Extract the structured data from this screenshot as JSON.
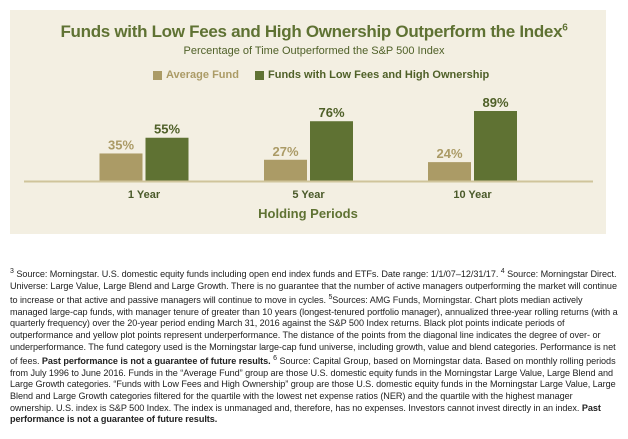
{
  "chart_data": {
    "type": "bar",
    "title": "Funds with Low Fees and High Ownership Outperform the Index",
    "title_superscript": "6",
    "subtitle": "Percentage of Time Outperformed the S&P 500 Index",
    "xlabel": "Holding Periods",
    "ylabel": "",
    "categories": [
      "1 Year",
      "5 Year",
      "10 Year"
    ],
    "series": [
      {
        "name": "Average Fund",
        "values": [
          35,
          27,
          24
        ],
        "color": "#ab9b66"
      },
      {
        "name": "Funds with Low Fees and High Ownership",
        "values": [
          55,
          76,
          89
        ],
        "color": "#5f7233"
      }
    ],
    "value_suffix": "%",
    "ylim": [
      0,
      100
    ],
    "grid": false,
    "legend_position": "top-center",
    "background": "#f3efe2",
    "axis_color": "#cfc49b"
  },
  "footnotes": [
    {
      "marker": "3",
      "text": " Source: Morningstar. U.S. domestic equity funds including open end index funds and ETFs. Date range: 1/1/07–12/31/17. "
    },
    {
      "marker": "4",
      "text": " Source: Morningstar Direct. Universe: Large Value, Large Blend and Large Growth. There is no guarantee that the number of active managers outperforming the market will continue to increase or that active and passive managers will continue to move in cycles. "
    },
    {
      "marker": "5",
      "text": "Sources: AMG Funds, Morningstar. Chart plots median actively managed large-cap funds, with manager tenure of greater than 10 years (longest-tenured portfolio manager), annualized three-year rolling returns (with a quarterly frequency) over the 20-year period ending March 31, 2016 against the S&P 500 Index returns. Black plot points indicate periods of outperformance and yellow plot points represent underperformance. The distance of the points from the diagonal line indicates the degree of over- or underperformance. The fund category used is the Morningstar large-cap fund universe, including growth, value and blend categories. Performance is net of fees. ",
      "bold": "Past performance is not a guarantee of future results."
    },
    {
      "marker": "6",
      "text": " Source: Capital Group, based on Morningstar data. Based on monthly rolling periods from July 1996 to June 2016. Funds in the “Average Fund” group are those U.S. domestic equity funds in the Morningstar Large Value, Large Blend and Large Growth categories. “Funds with Low Fees and High Ownership” group are those U.S. domestic equity funds in the Morningstar Large Value, Large Blend and Large Growth categories filtered for the quartile with the lowest net expense ratios (NER) and the quartile with the highest manager ownership. U.S. index is S&P 500 Index. The index is unmanaged and, therefore, has no expenses. Investors cannot invest directly in an index. ",
      "bold": "Past performance is not a guarantee of future results."
    }
  ]
}
